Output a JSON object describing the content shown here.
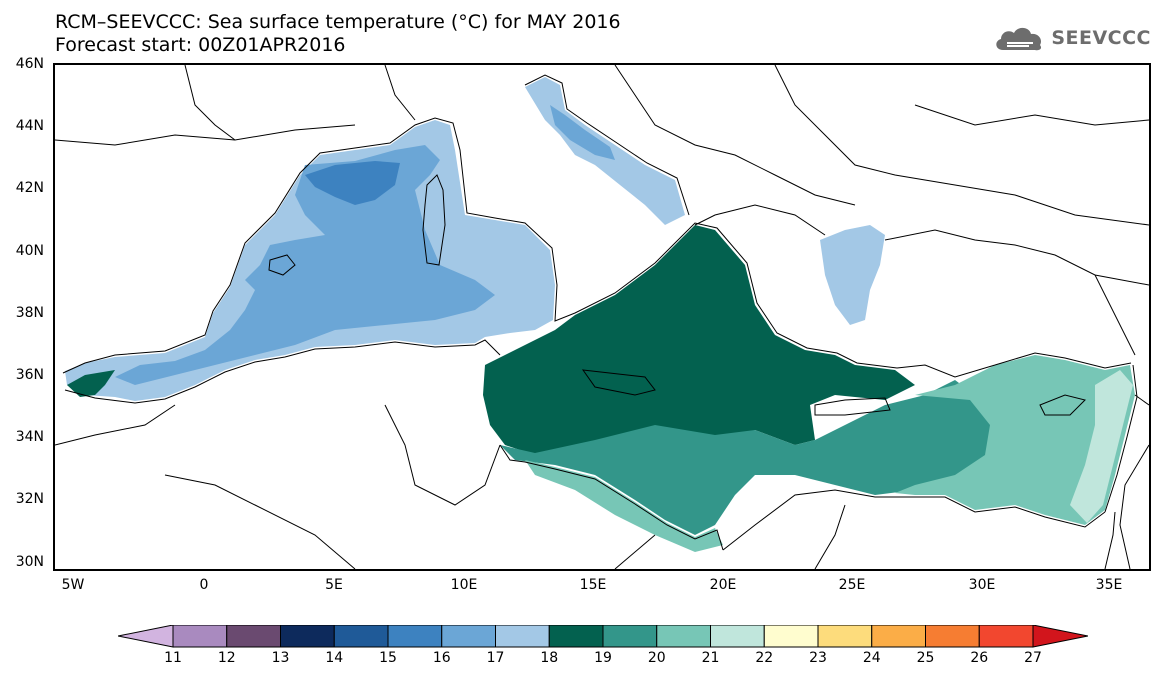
{
  "header": {
    "title_line_1": "RCM–SEEVCCC: Sea surface temperature (°C) for MAY 2016",
    "title_line_2": "Forecast start: 00Z01APR2016"
  },
  "logo": {
    "text": "SEEVCCC",
    "icon": "cloud-icon"
  },
  "map": {
    "lat_labels": [
      "46N",
      "44N",
      "42N",
      "40N",
      "38N",
      "36N",
      "34N",
      "32N",
      "30N"
    ],
    "lon_labels": [
      "5W",
      "0",
      "5E",
      "10E",
      "15E",
      "20E",
      "25E",
      "30E",
      "35E"
    ],
    "lat_range": [
      30,
      46
    ],
    "lon_range": [
      -5.5,
      36.5
    ]
  },
  "colorbar": {
    "labels": [
      "11",
      "12",
      "13",
      "14",
      "15",
      "16",
      "17",
      "18",
      "19",
      "20",
      "21",
      "22",
      "23",
      "24",
      "25",
      "26",
      "27"
    ],
    "colors": [
      "#d2b4e0",
      "#a98abf",
      "#6a4a70",
      "#0d2a5c",
      "#1f5a98",
      "#3d82c0",
      "#6ba6d6",
      "#a3c8e6",
      "#03614f",
      "#33968a",
      "#77c6b6",
      "#c0e6dc",
      "#fffdcf",
      "#fddc7c",
      "#fbad47",
      "#f67d32",
      "#f2472f",
      "#d2151c"
    ]
  }
}
